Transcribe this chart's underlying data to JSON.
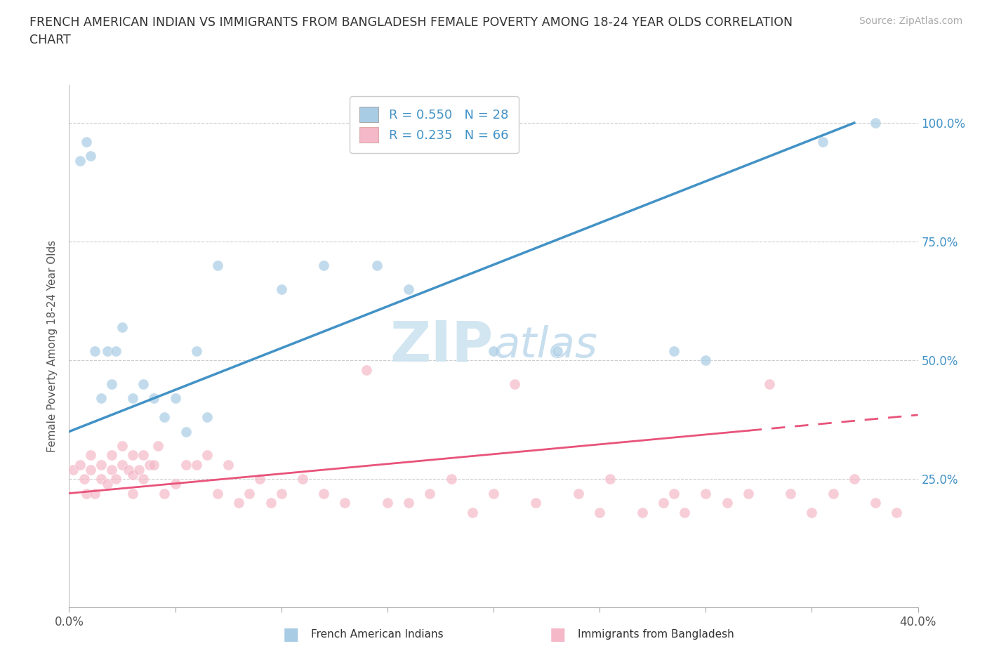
{
  "title": "FRENCH AMERICAN INDIAN VS IMMIGRANTS FROM BANGLADESH FEMALE POVERTY AMONG 18-24 YEAR OLDS CORRELATION\nCHART",
  "source": "Source: ZipAtlas.com",
  "ylabel": "Female Poverty Among 18-24 Year Olds",
  "xlim": [
    0.0,
    0.4
  ],
  "ylim": [
    -0.02,
    1.08
  ],
  "color_blue": "#a8cce4",
  "color_blue_fill": "#a8cce4",
  "color_blue_line": "#4292c6",
  "color_pink": "#f4b8c8",
  "color_pink_line": "#e8537a",
  "watermark_color": "#cde4f0",
  "blue_line_x0": 0.0,
  "blue_line_y0": 0.35,
  "blue_line_x1": 0.37,
  "blue_line_y1": 1.0,
  "pink_line_x0": 0.0,
  "pink_line_y0": 0.22,
  "pink_line_x1": 0.4,
  "pink_line_y1": 0.385,
  "french_indian_x": [
    0.005,
    0.008,
    0.01,
    0.012,
    0.015,
    0.018,
    0.02,
    0.022,
    0.025,
    0.03,
    0.035,
    0.04,
    0.045,
    0.05,
    0.055,
    0.06,
    0.065,
    0.07,
    0.1,
    0.12,
    0.145,
    0.16,
    0.2,
    0.23,
    0.285,
    0.3,
    0.355,
    0.38
  ],
  "french_indian_y": [
    0.92,
    0.96,
    0.93,
    0.52,
    0.42,
    0.52,
    0.45,
    0.52,
    0.57,
    0.42,
    0.45,
    0.42,
    0.38,
    0.42,
    0.35,
    0.52,
    0.38,
    0.7,
    0.65,
    0.7,
    0.7,
    0.65,
    0.52,
    0.52,
    0.52,
    0.5,
    0.96,
    1.0
  ],
  "bangladesh_x": [
    0.002,
    0.005,
    0.007,
    0.008,
    0.01,
    0.01,
    0.012,
    0.015,
    0.015,
    0.018,
    0.02,
    0.02,
    0.022,
    0.025,
    0.025,
    0.028,
    0.03,
    0.03,
    0.03,
    0.033,
    0.035,
    0.035,
    0.038,
    0.04,
    0.042,
    0.045,
    0.05,
    0.055,
    0.06,
    0.065,
    0.07,
    0.075,
    0.08,
    0.085,
    0.09,
    0.095,
    0.1,
    0.11,
    0.12,
    0.13,
    0.14,
    0.15,
    0.16,
    0.17,
    0.18,
    0.19,
    0.2,
    0.21,
    0.22,
    0.24,
    0.25,
    0.255,
    0.27,
    0.28,
    0.285,
    0.29,
    0.3,
    0.31,
    0.32,
    0.33,
    0.34,
    0.35,
    0.36,
    0.37,
    0.38,
    0.39
  ],
  "bangladesh_y": [
    0.27,
    0.28,
    0.25,
    0.22,
    0.27,
    0.3,
    0.22,
    0.25,
    0.28,
    0.24,
    0.27,
    0.3,
    0.25,
    0.28,
    0.32,
    0.27,
    0.22,
    0.26,
    0.3,
    0.27,
    0.25,
    0.3,
    0.28,
    0.28,
    0.32,
    0.22,
    0.24,
    0.28,
    0.28,
    0.3,
    0.22,
    0.28,
    0.2,
    0.22,
    0.25,
    0.2,
    0.22,
    0.25,
    0.22,
    0.2,
    0.48,
    0.2,
    0.2,
    0.22,
    0.25,
    0.18,
    0.22,
    0.45,
    0.2,
    0.22,
    0.18,
    0.25,
    0.18,
    0.2,
    0.22,
    0.18,
    0.22,
    0.2,
    0.22,
    0.45,
    0.22,
    0.18,
    0.22,
    0.25,
    0.2,
    0.18
  ]
}
